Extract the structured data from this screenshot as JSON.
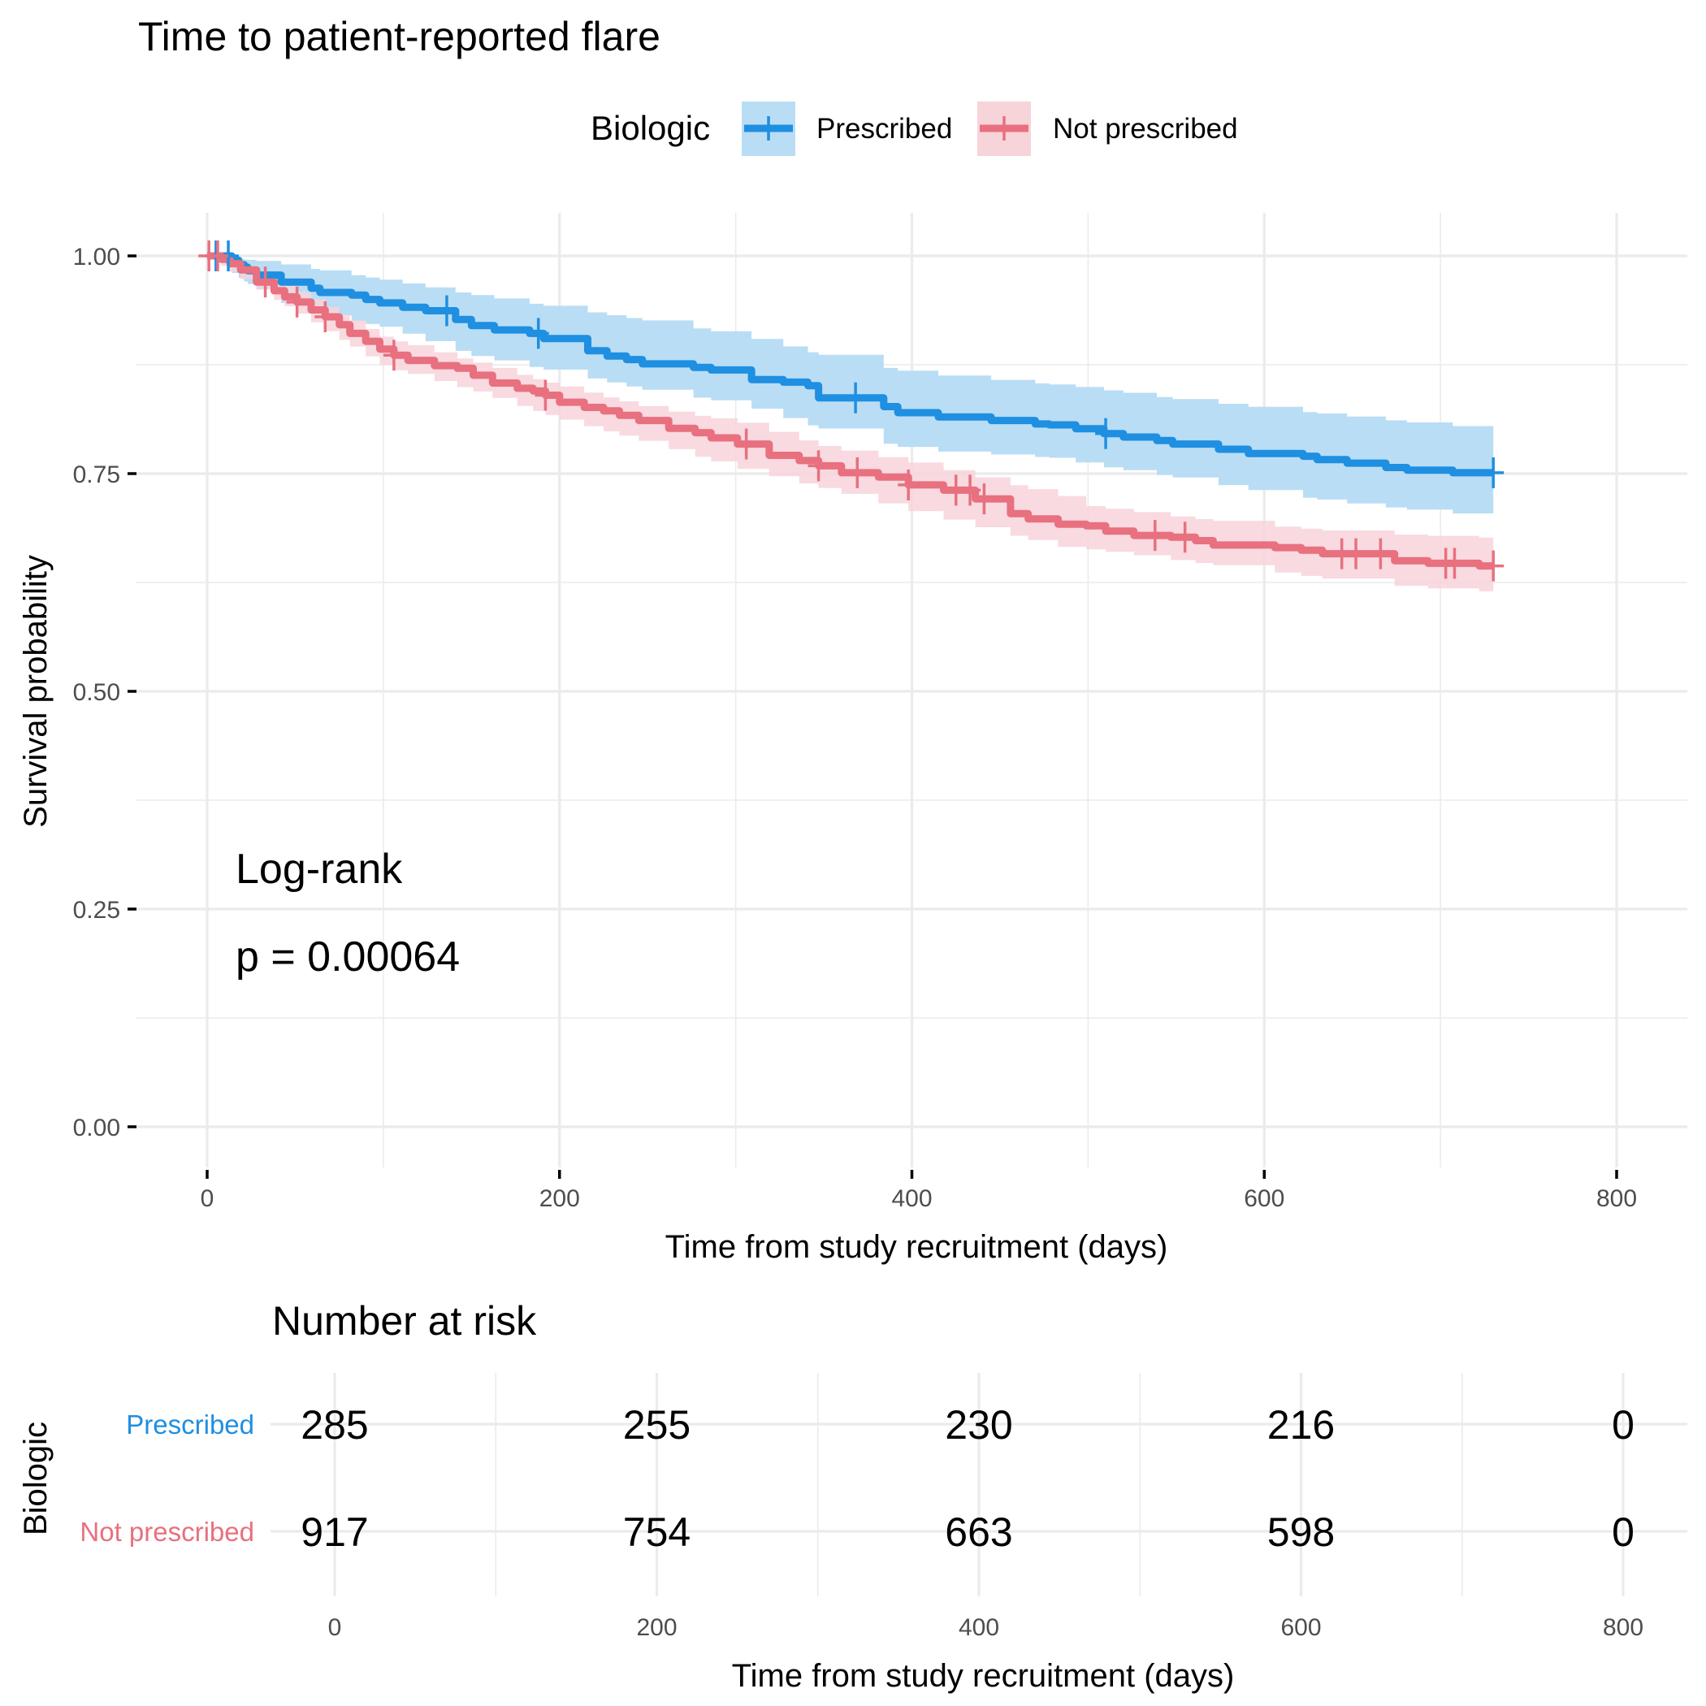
{
  "chart_data": {
    "type": "line",
    "subtype": "kaplan-meier",
    "title": "Time to patient-reported flare",
    "xlabel": "Time from study recruitment (days)",
    "ylabel": "Survival probability",
    "xlim": [
      0,
      800
    ],
    "ylim": [
      0,
      1
    ],
    "x_ticks": [
      0,
      200,
      400,
      600,
      800
    ],
    "x_tick_labels": [
      "0",
      "200",
      "400",
      "600",
      "800"
    ],
    "y_ticks": [
      0,
      0.25,
      0.5,
      0.75,
      1.0
    ],
    "y_tick_labels": [
      "0.00",
      "0.25",
      "0.50",
      "0.75",
      "1.00"
    ],
    "grid": true,
    "legend": {
      "title": "Biologic",
      "placement": "top",
      "entries": [
        "Prescribed",
        "Not prescribed"
      ]
    },
    "annotation": {
      "line1": "Log-rank",
      "line2": "p = 0.00064",
      "test": "Log-rank",
      "p_value": 0.00064
    },
    "series": [
      {
        "name": "Prescribed",
        "color": "#1E8FE1",
        "ci_color": "#B9DDF4",
        "steps": [
          [
            0,
            1.0
          ],
          [
            14,
            0.995
          ],
          [
            18,
            0.99
          ],
          [
            21,
            0.987
          ],
          [
            23,
            0.983
          ],
          [
            28,
            0.978
          ],
          [
            42,
            0.97
          ],
          [
            59,
            0.963
          ],
          [
            64,
            0.958
          ],
          [
            82,
            0.955
          ],
          [
            90,
            0.95
          ],
          [
            98,
            0.946
          ],
          [
            111,
            0.941
          ],
          [
            124,
            0.937
          ],
          [
            141,
            0.927
          ],
          [
            150,
            0.92
          ],
          [
            163,
            0.915
          ],
          [
            183,
            0.911
          ],
          [
            191,
            0.905
          ],
          [
            216,
            0.891
          ],
          [
            227,
            0.885
          ],
          [
            238,
            0.881
          ],
          [
            247,
            0.876
          ],
          [
            276,
            0.872
          ],
          [
            286,
            0.869
          ],
          [
            309,
            0.858
          ],
          [
            327,
            0.855
          ],
          [
            341,
            0.851
          ],
          [
            347,
            0.837
          ],
          [
            384,
            0.827
          ],
          [
            392,
            0.82
          ],
          [
            415,
            0.815
          ],
          [
            445,
            0.811
          ],
          [
            470,
            0.807
          ],
          [
            478,
            0.806
          ],
          [
            493,
            0.8016
          ],
          [
            509,
            0.796
          ],
          [
            520,
            0.792
          ],
          [
            539,
            0.788
          ],
          [
            548,
            0.784
          ],
          [
            574,
            0.778
          ],
          [
            591,
            0.773
          ],
          [
            622,
            0.77
          ],
          [
            630,
            0.766
          ],
          [
            647,
            0.762
          ],
          [
            669,
            0.757
          ],
          [
            681,
            0.754
          ],
          [
            707,
            0.751
          ],
          [
            730,
            0.751
          ]
        ],
        "censored_times": [
          5,
          12,
          136,
          188,
          368,
          510,
          730
        ],
        "ci": [
          [
            0,
            1.0,
            1.0
          ],
          [
            25,
            0.995,
            0.965
          ],
          [
            50,
            0.988,
            0.937
          ],
          [
            100,
            0.972,
            0.918
          ],
          [
            150,
            0.955,
            0.885
          ],
          [
            200,
            0.94,
            0.866
          ],
          [
            250,
            0.925,
            0.845
          ],
          [
            300,
            0.909,
            0.83
          ],
          [
            350,
            0.885,
            0.8
          ],
          [
            400,
            0.865,
            0.777
          ],
          [
            480,
            0.852,
            0.768
          ],
          [
            500,
            0.848,
            0.76
          ],
          [
            550,
            0.835,
            0.745
          ],
          [
            600,
            0.825,
            0.728
          ],
          [
            650,
            0.815,
            0.715
          ],
          [
            700,
            0.805,
            0.705
          ],
          [
            730,
            0.803,
            0.702
          ]
        ]
      },
      {
        "name": "Not prescribed",
        "color": "#E8707F",
        "ci_color": "#F7D3DA",
        "steps": [
          [
            0,
            1.0
          ],
          [
            8,
            0.996
          ],
          [
            13,
            0.991
          ],
          [
            19,
            0.984
          ],
          [
            28,
            0.97
          ],
          [
            38,
            0.96
          ],
          [
            44,
            0.953
          ],
          [
            51,
            0.947
          ],
          [
            59,
            0.938
          ],
          [
            67,
            0.93
          ],
          [
            75,
            0.921
          ],
          [
            81,
            0.911
          ],
          [
            90,
            0.902
          ],
          [
            98,
            0.893
          ],
          [
            106,
            0.886
          ],
          [
            114,
            0.88
          ],
          [
            129,
            0.874
          ],
          [
            142,
            0.871
          ],
          [
            151,
            0.863
          ],
          [
            162,
            0.854
          ],
          [
            176,
            0.848
          ],
          [
            185,
            0.845
          ],
          [
            192,
            0.84
          ],
          [
            200,
            0.832
          ],
          [
            214,
            0.826
          ],
          [
            225,
            0.822
          ],
          [
            234,
            0.817
          ],
          [
            245,
            0.811
          ],
          [
            262,
            0.802
          ],
          [
            277,
            0.797
          ],
          [
            286,
            0.791
          ],
          [
            301,
            0.784
          ],
          [
            319,
            0.771
          ],
          [
            336,
            0.765
          ],
          [
            347,
            0.759
          ],
          [
            360,
            0.751
          ],
          [
            381,
            0.746
          ],
          [
            398,
            0.737
          ],
          [
            418,
            0.731
          ],
          [
            436,
            0.721
          ],
          [
            456,
            0.704
          ],
          [
            466,
            0.698
          ],
          [
            483,
            0.692
          ],
          [
            499,
            0.69
          ],
          [
            510,
            0.684
          ],
          [
            526,
            0.679
          ],
          [
            547,
            0.677
          ],
          [
            561,
            0.673
          ],
          [
            571,
            0.668
          ],
          [
            606,
            0.665
          ],
          [
            621,
            0.662
          ],
          [
            633,
            0.658
          ],
          [
            674,
            0.65
          ],
          [
            693,
            0.647
          ],
          [
            722,
            0.644
          ],
          [
            730,
            0.644
          ]
        ],
        "censored_times": [
          1,
          6,
          33,
          51,
          67,
          106,
          192,
          306,
          347,
          369,
          398,
          425,
          433,
          441,
          538,
          555,
          644,
          652,
          666,
          703,
          708,
          730
        ],
        "ci": [
          [
            0,
            1.0,
            1.0
          ],
          [
            25,
            0.985,
            0.965
          ],
          [
            50,
            0.96,
            0.935
          ],
          [
            100,
            0.905,
            0.872
          ],
          [
            150,
            0.878,
            0.845
          ],
          [
            200,
            0.85,
            0.812
          ],
          [
            250,
            0.825,
            0.785
          ],
          [
            300,
            0.809,
            0.756
          ],
          [
            350,
            0.78,
            0.732
          ],
          [
            400,
            0.762,
            0.706
          ],
          [
            482,
            0.725,
            0.666
          ],
          [
            500,
            0.712,
            0.663
          ],
          [
            550,
            0.7,
            0.65
          ],
          [
            600,
            0.69,
            0.638
          ],
          [
            650,
            0.682,
            0.625
          ],
          [
            700,
            0.678,
            0.617
          ],
          [
            730,
            0.676,
            0.614
          ]
        ]
      }
    ]
  },
  "risk_table": {
    "title": "Number at risk",
    "ylabel": "Biologic",
    "xlabel": "Time from study recruitment (days)",
    "times": [
      0,
      200,
      400,
      600,
      800
    ],
    "time_labels": [
      "0",
      "200",
      "400",
      "600",
      "800"
    ],
    "rows": [
      {
        "label": "Prescribed",
        "color": "#1E8FE1",
        "values": [
          "285",
          "255",
          "230",
          "216",
          "0"
        ]
      },
      {
        "label": "Not prescribed",
        "color": "#E8707F",
        "values": [
          "917",
          "754",
          "663",
          "598",
          "0"
        ]
      }
    ]
  }
}
